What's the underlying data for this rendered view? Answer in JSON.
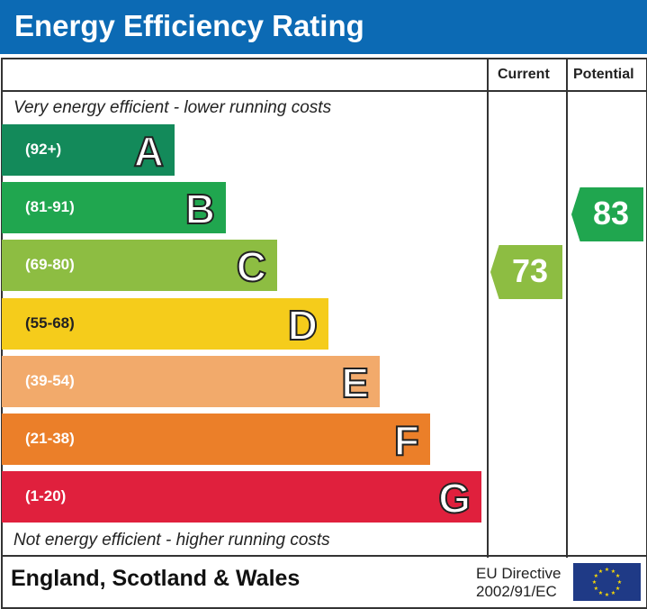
{
  "title": "Energy Efficiency Rating",
  "headers": {
    "current": "Current",
    "potential": "Potential"
  },
  "top_caption": "Very energy efficient - lower running costs",
  "bottom_caption": "Not energy efficient - higher running costs",
  "footer": {
    "region": "England, Scotland & Wales",
    "directive_line1": "EU Directive",
    "directive_line2": "2002/91/EC",
    "flag_icon": "eu-flag"
  },
  "chart_data": {
    "type": "bar",
    "bands": [
      {
        "letter": "A",
        "range": "(92+)",
        "color": "#138a5a"
      },
      {
        "letter": "B",
        "range": "(81-91)",
        "color": "#20a64f"
      },
      {
        "letter": "C",
        "range": "(69-80)",
        "color": "#8dbd42"
      },
      {
        "letter": "D",
        "range": "(55-68)",
        "color": "#f5cc1b"
      },
      {
        "letter": "E",
        "range": "(39-54)",
        "color": "#f2aa6b"
      },
      {
        "letter": "F",
        "range": "(21-38)",
        "color": "#eb7f29"
      },
      {
        "letter": "G",
        "range": "(1-20)",
        "color": "#e0203d"
      }
    ],
    "current": {
      "value": 73,
      "band": "C",
      "color": "#8dbd42"
    },
    "potential": {
      "value": 83,
      "band": "B",
      "color": "#20a64f"
    }
  }
}
